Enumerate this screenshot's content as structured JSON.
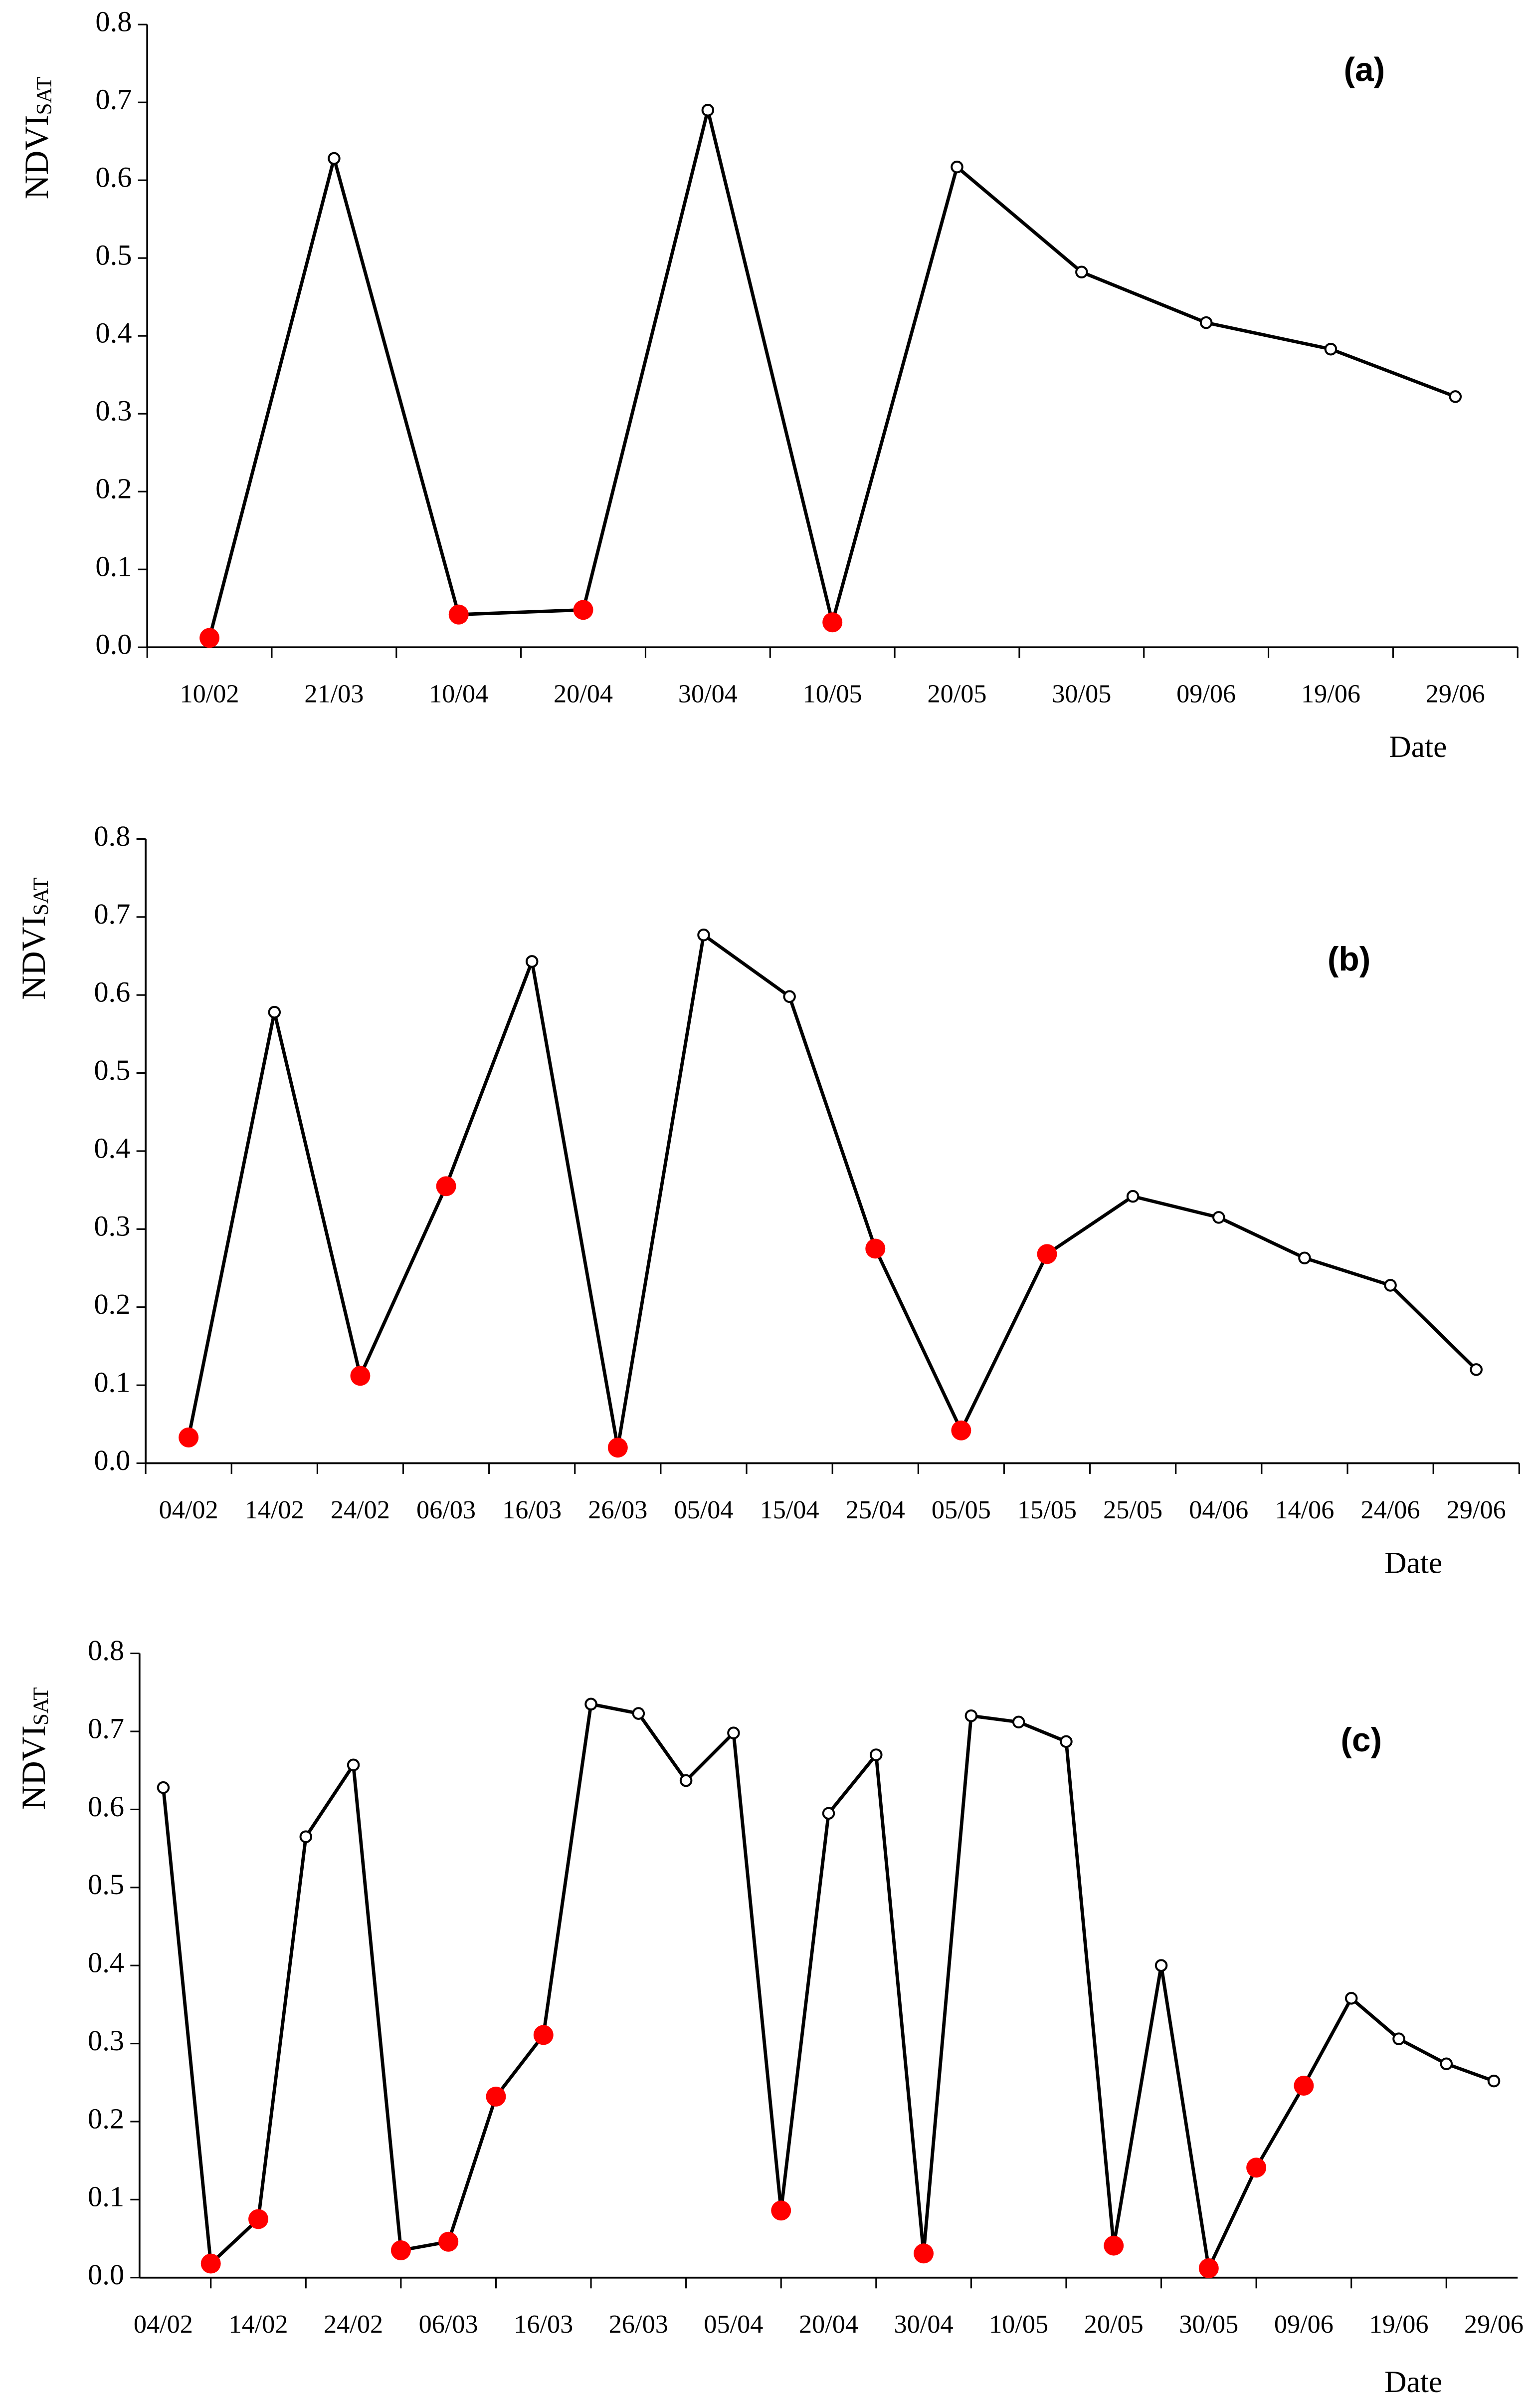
{
  "chart_data": [
    {
      "type": "line",
      "title": "(a)",
      "x_label": "Date",
      "y_label": {
        "main": "NDVI",
        "sub": "SAT"
      },
      "categories": [
        "10/02",
        "21/03",
        "10/04",
        "20/04",
        "30/04",
        "10/05",
        "20/05",
        "30/05",
        "09/06",
        "19/06",
        "29/06"
      ],
      "series": [
        {
          "color": "#000000",
          "values": [
            0.012,
            0.628,
            0.042,
            0.048,
            0.69,
            0.032,
            0.617,
            0.482,
            0.417,
            0.383,
            0.322
          ],
          "point_colors": [
            "#ff0000",
            "#ffffff",
            "#ff0000",
            "#ff0000",
            "#ffffff",
            "#ff0000",
            "#ffffff",
            "#ffffff",
            "#ffffff",
            "#ffffff",
            "#ffffff"
          ]
        }
      ],
      "ylim": [
        0,
        0.8
      ],
      "yticks": [
        {
          "value": 0,
          "label": "0.0"
        },
        0.1,
        0.2,
        0.3,
        0.4,
        0.5,
        0.6,
        0.7,
        0.8
      ],
      "grid": false
    },
    {
      "type": "line",
      "title": "(b)",
      "x_label": "Date",
      "y_label": {
        "main": "NDVI",
        "sub": "SAT"
      },
      "categories": [
        "04/02",
        "14/02",
        "24/02",
        "06/03",
        "16/03",
        "26/03",
        "05/04",
        "15/04",
        "25/04",
        "05/05",
        "15/05",
        "25/05",
        "04/06",
        "14/06",
        "24/06",
        "29/06"
      ],
      "series": [
        {
          "color": "#000000",
          "values": [
            0.033,
            0.578,
            0.112,
            0.355,
            0.643,
            0.02,
            0.677,
            0.598,
            0.275,
            0.042,
            0.268,
            0.342,
            0.315,
            0.263,
            0.228,
            0.12
          ],
          "point_colors": [
            "#ff0000",
            "#ffffff",
            "#ff0000",
            "#ff0000",
            "#ffffff",
            "#ff0000",
            "#ffffff",
            "#ffffff",
            "#ff0000",
            "#ff0000",
            "#ff0000",
            "#ffffff",
            "#ffffff",
            "#ffffff",
            "#ffffff",
            "#ffffff"
          ]
        }
      ],
      "ylim": [
        0,
        0.8
      ],
      "yticks": [
        {
          "value": 0,
          "label": "0.0"
        },
        0.1,
        0.2,
        0.3,
        0.4,
        0.5,
        0.6,
        0.7,
        0.8
      ],
      "grid": false
    },
    {
      "type": "line",
      "title": "(c)",
      "x_label": "Date",
      "y_label": {
        "main": "NDVI",
        "sub": "SAT"
      },
      "categories": [
        "04/02",
        null,
        "14/02",
        null,
        "24/02",
        null,
        "06/03",
        null,
        "16/03",
        null,
        "26/03",
        null,
        "05/04",
        null,
        "20/04",
        null,
        "30/04",
        null,
        "10/05",
        null,
        "20/05",
        null,
        "30/05",
        null,
        "09/06",
        null,
        "19/06",
        null,
        "29/06"
      ],
      "series": [
        {
          "color": "#000000",
          "values": [
            0.628,
            0.018,
            0.075,
            0.565,
            0.657,
            0.035,
            0.046,
            0.232,
            0.311,
            0.735,
            0.723,
            0.637,
            0.698,
            0.086,
            0.595,
            0.67,
            0.031,
            0.72,
            0.712,
            0.687,
            0.041,
            0.4,
            0.012,
            0.141,
            0.246,
            0.358,
            0.306,
            0.274,
            0.252
          ],
          "point_colors": [
            "#ffffff",
            "#ff0000",
            "#ff0000",
            "#ffffff",
            "#ffffff",
            "#ff0000",
            "#ff0000",
            "#ff0000",
            "#ff0000",
            "#ffffff",
            "#ffffff",
            "#ffffff",
            "#ffffff",
            "#ff0000",
            "#ffffff",
            "#ffffff",
            "#ff0000",
            "#ffffff",
            "#ffffff",
            "#ffffff",
            "#ff0000",
            "#ffffff",
            "#ff0000",
            "#ff0000",
            "#ff0000",
            "#ffffff",
            "#ffffff",
            "#ffffff",
            "#ffffff"
          ]
        }
      ],
      "ylim": [
        0,
        0.8
      ],
      "yticks": [
        {
          "value": 0,
          "label": "0.0"
        },
        0.1,
        0.2,
        0.3,
        0.4,
        0.5,
        0.6,
        0.7,
        0.8
      ],
      "grid": false
    }
  ]
}
